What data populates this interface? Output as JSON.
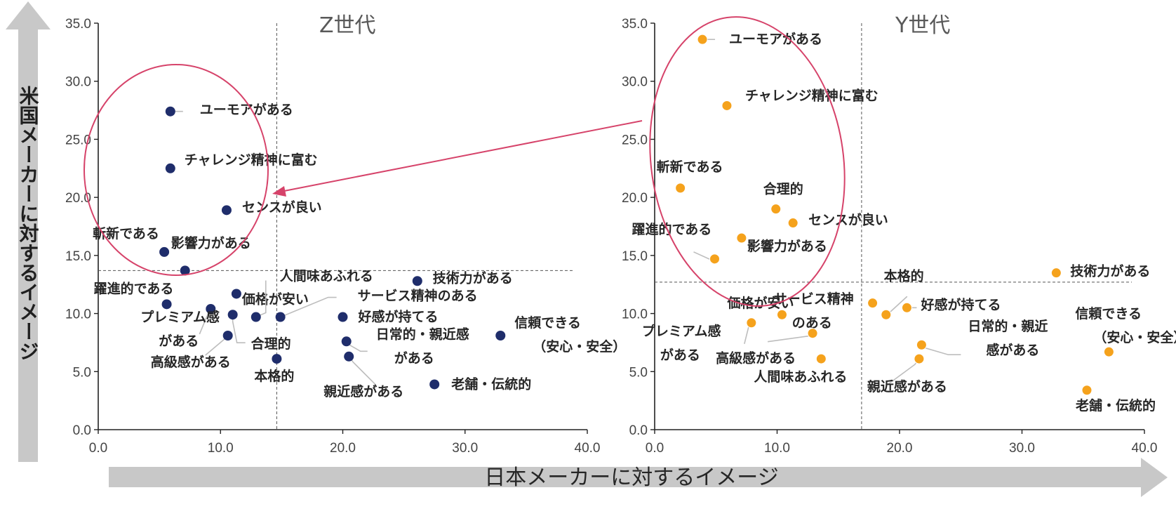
{
  "chart_data": [
    {
      "type": "scatter",
      "title": "Z世代",
      "xlim": [
        0,
        40
      ],
      "ylim": [
        0,
        35
      ],
      "xticks": [
        "0.0",
        "10.0",
        "20.0",
        "30.0",
        "40.0"
      ],
      "yticks": [
        "0.0",
        "5.0",
        "10.0",
        "15.0",
        "20.0",
        "25.0",
        "30.0",
        "35.0"
      ],
      "color": "#1f2d6b",
      "vline_x": 14.6,
      "hline_y": 13.7,
      "points": [
        {
          "label": "ユーモアがある",
          "x": 5.9,
          "y": 27.4
        },
        {
          "label": "チャレンジ精神に富む",
          "x": 5.9,
          "y": 22.5
        },
        {
          "label": "センスが良い",
          "x": 10.5,
          "y": 18.9
        },
        {
          "label": "斬新である",
          "x": 5.4,
          "y": 15.3
        },
        {
          "label": "影響力がある",
          "x": 7.1,
          "y": 13.7
        },
        {
          "label": "価格が安い",
          "x": 11.3,
          "y": 11.7
        },
        {
          "label": "躍進的である",
          "x": 5.6,
          "y": 10.8
        },
        {
          "label": "プレミアム感がある",
          "x": 9.2,
          "y": 10.4
        },
        {
          "label": "合理的",
          "x": 11.0,
          "y": 9.9
        },
        {
          "label": "人間味あふれる",
          "x": 12.9,
          "y": 9.7
        },
        {
          "label": "サービス精神のある",
          "x": 14.9,
          "y": 9.7
        },
        {
          "label": "高級感がある",
          "x": 10.6,
          "y": 8.1
        },
        {
          "label": "本格的",
          "x": 14.6,
          "y": 6.1
        },
        {
          "label": "技術力がある",
          "x": 26.1,
          "y": 12.8
        },
        {
          "label": "好感が持てる",
          "x": 20.0,
          "y": 9.7
        },
        {
          "label": "日常的・親近感がある",
          "x": 20.3,
          "y": 7.6
        },
        {
          "label": "親近感がある",
          "x": 20.5,
          "y": 6.3
        },
        {
          "label": "信頼できる（安心・安全）",
          "x": 32.9,
          "y": 8.1
        },
        {
          "label": "老舗・伝統的",
          "x": 27.5,
          "y": 3.9
        }
      ]
    },
    {
      "type": "scatter",
      "title": "Y世代",
      "xlim": [
        0,
        40
      ],
      "ylim": [
        0,
        35
      ],
      "xticks": [
        "0.0",
        "10.0",
        "20.0",
        "30.0",
        "40.0"
      ],
      "yticks": [
        "0.0",
        "5.0",
        "10.0",
        "15.0",
        "20.0",
        "25.0",
        "30.0",
        "35.0"
      ],
      "color": "#f5a21c",
      "vline_x": 16.9,
      "hline_y": 12.7,
      "points": [
        {
          "label": "ユーモアがある",
          "x": 3.9,
          "y": 33.6
        },
        {
          "label": "チャレンジ精神に富む",
          "x": 5.9,
          "y": 27.9
        },
        {
          "label": "斬新である",
          "x": 2.1,
          "y": 20.8
        },
        {
          "label": "合理的",
          "x": 9.9,
          "y": 19.0
        },
        {
          "label": "センスが良い",
          "x": 11.3,
          "y": 17.8
        },
        {
          "label": "影響力がある",
          "x": 7.1,
          "y": 16.5
        },
        {
          "label": "躍進的である",
          "x": 4.9,
          "y": 14.7
        },
        {
          "label": "技術力がある",
          "x": 32.8,
          "y": 13.5
        },
        {
          "label": "本格的",
          "x": 17.8,
          "y": 10.9
        },
        {
          "label": "好感が持てる",
          "x": 20.6,
          "y": 10.5
        },
        {
          "label": "サービス精神のある",
          "x": 18.9,
          "y": 9.9
        },
        {
          "label": "価格が安い",
          "x": 10.4,
          "y": 9.9
        },
        {
          "label": "プレミアム感がある",
          "x": 7.9,
          "y": 9.2
        },
        {
          "label": "高級感がある",
          "x": 12.9,
          "y": 8.3
        },
        {
          "label": "日常的・親近感がある",
          "x": 21.8,
          "y": 7.3
        },
        {
          "label": "信頼できる（安心・安全）",
          "x": 37.1,
          "y": 6.7
        },
        {
          "label": "人間味あふれる",
          "x": 13.6,
          "y": 6.1
        },
        {
          "label": "親近感がある",
          "x": 21.6,
          "y": 6.1
        },
        {
          "label": "老舗・伝統的",
          "x": 35.3,
          "y": 3.4
        }
      ]
    }
  ],
  "axis_titles": {
    "x": "日本メーカーに対するイメージ",
    "y": "米国メーカーに対するイメージ"
  }
}
